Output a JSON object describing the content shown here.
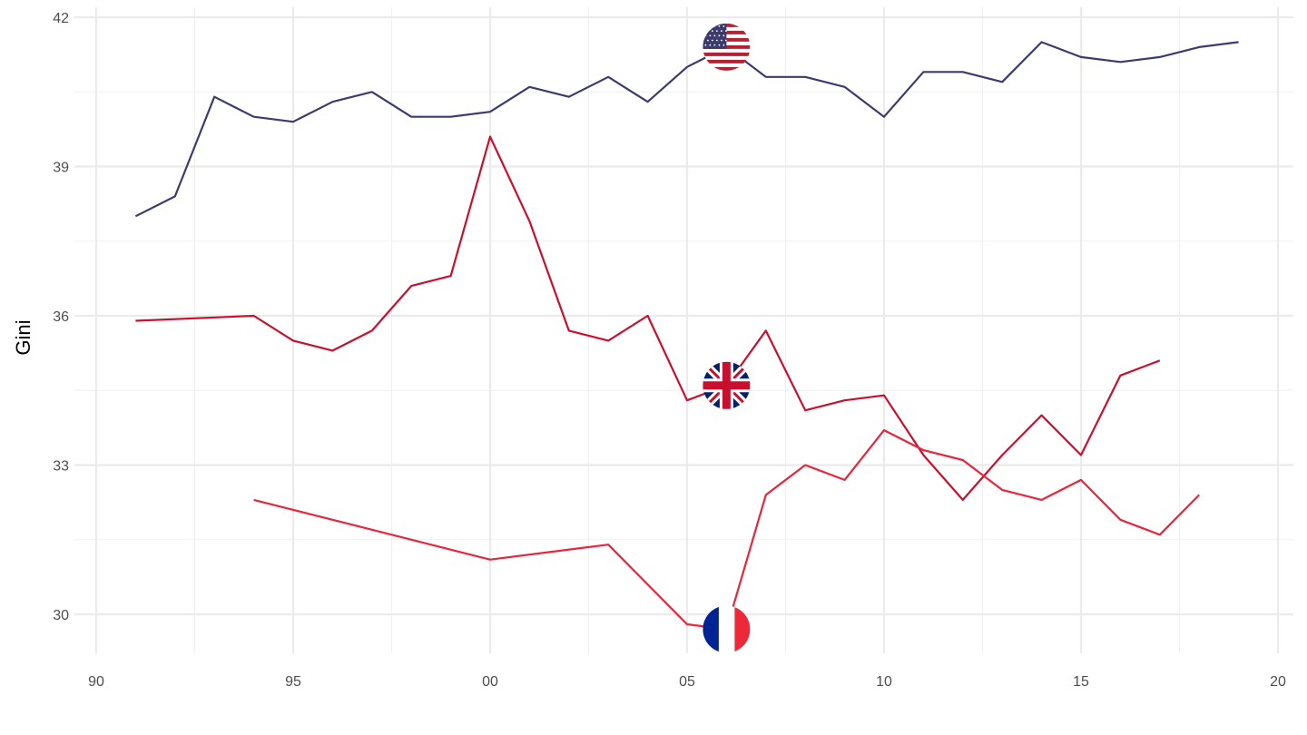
{
  "chart_data": {
    "type": "line",
    "title": "",
    "xlabel": "",
    "ylabel": "Gini",
    "xlim": [
      1990,
      2020
    ],
    "ylim": [
      29.2,
      42.0
    ],
    "x_ticks": [
      1990,
      1995,
      2000,
      2005,
      2010,
      2015,
      2020
    ],
    "x_tick_labels": [
      "90",
      "95",
      "00",
      "05",
      "10",
      "15",
      "20"
    ],
    "y_ticks": [
      30,
      33,
      36,
      39,
      42
    ],
    "y_tick_labels": [
      "30",
      "33",
      "36",
      "39",
      "42"
    ],
    "grid": true,
    "legend": "none",
    "series": [
      {
        "flag": "usa-flag-icon",
        "color": "#3c3b6e",
        "flag_at": [
          2006,
          41.4
        ],
        "points": [
          [
            1991,
            38.0
          ],
          [
            1992,
            38.4
          ],
          [
            1993,
            40.4
          ],
          [
            1994,
            40.0
          ],
          [
            1995,
            39.9
          ],
          [
            1996,
            40.3
          ],
          [
            1997,
            40.5
          ],
          [
            1998,
            40.0
          ],
          [
            1999,
            40.0
          ],
          [
            2000,
            40.1
          ],
          [
            2001,
            40.6
          ],
          [
            2002,
            40.4
          ],
          [
            2003,
            40.8
          ],
          [
            2004,
            40.3
          ],
          [
            2005,
            41.0
          ],
          [
            2006,
            41.4
          ],
          [
            2007,
            40.8
          ],
          [
            2008,
            40.8
          ],
          [
            2009,
            40.6
          ],
          [
            2010,
            40.0
          ],
          [
            2011,
            40.9
          ],
          [
            2012,
            40.9
          ],
          [
            2013,
            40.7
          ],
          [
            2014,
            41.5
          ],
          [
            2015,
            41.2
          ],
          [
            2016,
            41.1
          ],
          [
            2017,
            41.2
          ],
          [
            2018,
            41.4
          ],
          [
            2019,
            41.5
          ]
        ]
      },
      {
        "flag": "uk-flag-icon",
        "color": "#c8102e",
        "flag_at": [
          2006,
          34.6
        ],
        "points": [
          [
            1991,
            35.9
          ],
          [
            1994,
            36.0
          ],
          [
            1995,
            35.5
          ],
          [
            1996,
            35.3
          ],
          [
            1997,
            35.7
          ],
          [
            1998,
            36.6
          ],
          [
            1999,
            36.8
          ],
          [
            2000,
            39.6
          ],
          [
            2001,
            37.9
          ],
          [
            2002,
            35.7
          ],
          [
            2003,
            35.5
          ],
          [
            2004,
            36.0
          ],
          [
            2005,
            34.3
          ],
          [
            2006,
            34.6
          ],
          [
            2007,
            35.7
          ],
          [
            2008,
            34.1
          ],
          [
            2009,
            34.3
          ],
          [
            2010,
            34.4
          ],
          [
            2011,
            33.2
          ],
          [
            2012,
            32.3
          ],
          [
            2013,
            33.2
          ],
          [
            2014,
            34.0
          ],
          [
            2015,
            33.2
          ],
          [
            2016,
            34.8
          ],
          [
            2017,
            35.1
          ]
        ]
      },
      {
        "flag": "france-flag-icon",
        "color": "#e8253b",
        "flag_at": [
          2006,
          29.7
        ],
        "points": [
          [
            1994,
            32.3
          ],
          [
            2000,
            31.1
          ],
          [
            2003,
            31.4
          ],
          [
            2005,
            29.8
          ],
          [
            2006,
            29.7
          ],
          [
            2007,
            32.4
          ],
          [
            2008,
            33.0
          ],
          [
            2009,
            32.7
          ],
          [
            2010,
            33.7
          ],
          [
            2011,
            33.3
          ],
          [
            2012,
            33.1
          ],
          [
            2013,
            32.5
          ],
          [
            2014,
            32.3
          ],
          [
            2015,
            32.7
          ],
          [
            2016,
            31.9
          ],
          [
            2017,
            31.6
          ],
          [
            2018,
            32.4
          ]
        ]
      }
    ]
  }
}
